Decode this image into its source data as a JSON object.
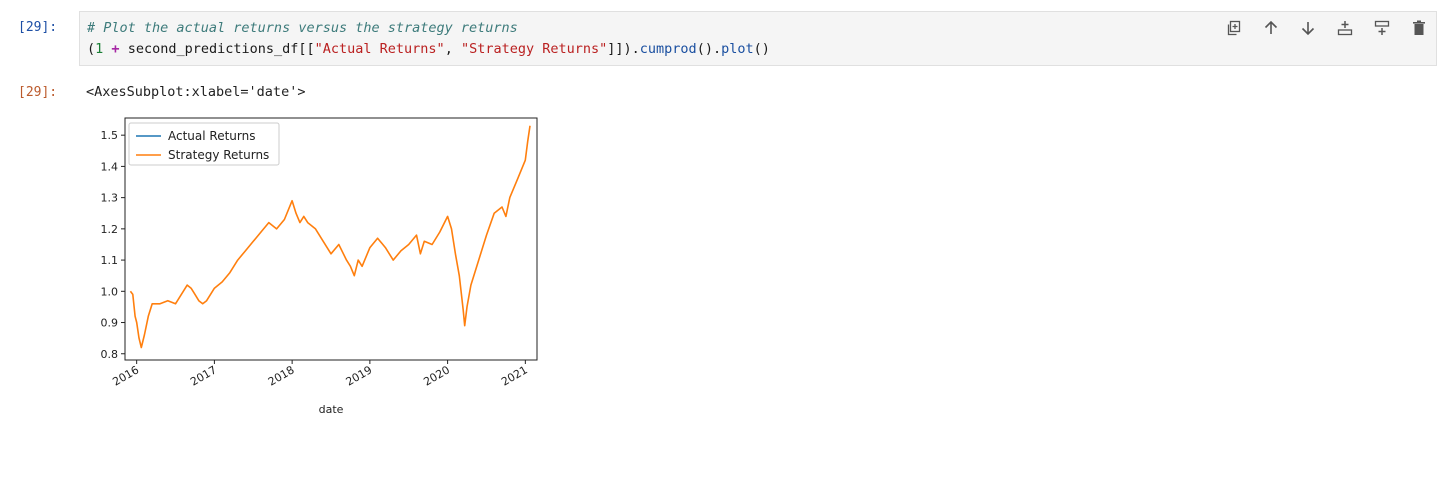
{
  "input_cell": {
    "prompt": "[29]:",
    "comment": "# Plot the actual returns versus the strategy returns",
    "code_parts": {
      "open": "(",
      "one": "1",
      "plus": "+",
      "df": "second_predictions_df[[",
      "s1": "\"Actual Returns\"",
      "comma": ", ",
      "s2": "\"Strategy Returns\"",
      "close": "]]).",
      "cumprod": "cumprod",
      "paren1": "().",
      "plot": "plot",
      "paren2": "()"
    }
  },
  "toolbar": {
    "icons": [
      "duplicate-icon",
      "move-up-icon",
      "move-down-icon",
      "insert-above-icon",
      "insert-below-icon",
      "delete-icon"
    ]
  },
  "output_cell": {
    "prompt": "[29]:",
    "text": "<AxesSubplot:xlabel='date'>"
  },
  "chart_data": {
    "type": "line",
    "xlabel": "date",
    "ylabel": "",
    "xlim": [
      2015.85,
      2021.15
    ],
    "ylim": [
      0.78,
      1.555
    ],
    "yticks": [
      0.8,
      0.9,
      1.0,
      1.1,
      1.2,
      1.3,
      1.4,
      1.5
    ],
    "ytick_labels": [
      "0.8",
      "0.9",
      "1.0",
      "1.1",
      "1.2",
      "1.3",
      "1.4",
      "1.5"
    ],
    "xticks": [
      2016,
      2017,
      2018,
      2019,
      2020,
      2021
    ],
    "xtick_labels": [
      "2016",
      "2017",
      "2018",
      "2019",
      "2020",
      "2021"
    ],
    "legend_position": "top-left",
    "grid": false,
    "series": [
      {
        "name": "Actual Returns",
        "color": "#1f77b4",
        "x": [],
        "y": []
      },
      {
        "name": "Strategy Returns",
        "color": "#ff7f0e",
        "x": [
          2015.92,
          2015.95,
          2015.98,
          2016.0,
          2016.03,
          2016.06,
          2016.1,
          2016.15,
          2016.2,
          2016.3,
          2016.4,
          2016.5,
          2016.6,
          2016.65,
          2016.7,
          2016.75,
          2016.8,
          2016.85,
          2016.9,
          2016.95,
          2017.0,
          2017.1,
          2017.2,
          2017.3,
          2017.4,
          2017.5,
          2017.6,
          2017.7,
          2017.8,
          2017.9,
          2018.0,
          2018.05,
          2018.1,
          2018.15,
          2018.2,
          2018.3,
          2018.4,
          2018.5,
          2018.6,
          2018.7,
          2018.75,
          2018.8,
          2018.85,
          2018.9,
          2019.0,
          2019.1,
          2019.2,
          2019.3,
          2019.4,
          2019.5,
          2019.6,
          2019.65,
          2019.7,
          2019.8,
          2019.9,
          2020.0,
          2020.05,
          2020.1,
          2020.15,
          2020.2,
          2020.22,
          2020.25,
          2020.3,
          2020.4,
          2020.5,
          2020.6,
          2020.7,
          2020.75,
          2020.8,
          2020.9,
          2021.0,
          2021.03,
          2021.06
        ],
        "y": [
          1.0,
          0.99,
          0.92,
          0.9,
          0.85,
          0.82,
          0.86,
          0.92,
          0.96,
          0.96,
          0.97,
          0.96,
          1.0,
          1.02,
          1.01,
          0.99,
          0.97,
          0.96,
          0.97,
          0.99,
          1.01,
          1.03,
          1.06,
          1.1,
          1.13,
          1.16,
          1.19,
          1.22,
          1.2,
          1.23,
          1.29,
          1.25,
          1.22,
          1.24,
          1.22,
          1.2,
          1.16,
          1.12,
          1.15,
          1.1,
          1.08,
          1.05,
          1.1,
          1.08,
          1.14,
          1.17,
          1.14,
          1.1,
          1.13,
          1.15,
          1.18,
          1.12,
          1.16,
          1.15,
          1.19,
          1.24,
          1.2,
          1.12,
          1.05,
          0.94,
          0.89,
          0.95,
          1.02,
          1.1,
          1.18,
          1.25,
          1.27,
          1.24,
          1.3,
          1.36,
          1.42,
          1.48,
          1.53
        ]
      }
    ]
  }
}
